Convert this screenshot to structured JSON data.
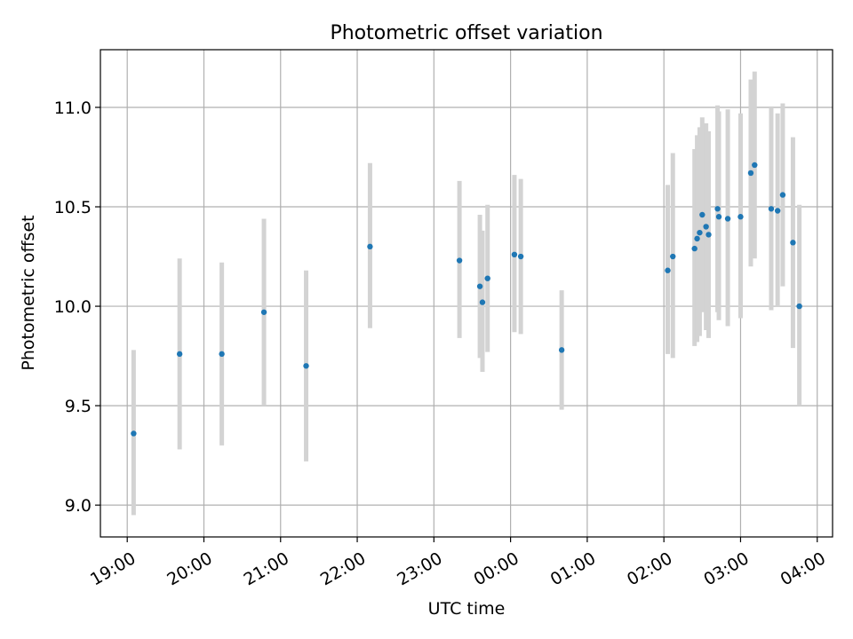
{
  "chart_data": {
    "type": "scatter",
    "title": "Photometric offset variation",
    "xlabel": "UTC time",
    "ylabel": "Photometric offset",
    "x_ticks": [
      "19:00",
      "20:00",
      "21:00",
      "22:00",
      "23:00",
      "00:00",
      "01:00",
      "02:00",
      "03:00",
      "04:00"
    ],
    "x_tick_values": [
      "19:00",
      "20:00",
      "21:00",
      "22:00",
      "23:00",
      "24:00",
      "25:00",
      "26:00",
      "27:00",
      "28:00"
    ],
    "y_ticks": [
      "9.0",
      "9.5",
      "10.0",
      "10.5",
      "11.0"
    ],
    "y_tick_values": [
      9.0,
      9.5,
      10.0,
      10.5,
      11.0
    ],
    "xlim": [
      "18:39",
      "28:12"
    ],
    "ylim": [
      8.84,
      11.29
    ],
    "grid": true,
    "colors": {
      "point": "#1f77b4",
      "errorbar": "#d3d3d3",
      "grid": "#b0b0b0"
    },
    "points": [
      {
        "x": "19:05",
        "y": 9.36,
        "err_low": 8.95,
        "err_high": 9.78
      },
      {
        "x": "19:41",
        "y": 9.76,
        "err_low": 9.28,
        "err_high": 10.24
      },
      {
        "x": "20:14",
        "y": 9.76,
        "err_low": 9.3,
        "err_high": 10.22
      },
      {
        "x": "20:47",
        "y": 9.97,
        "err_low": 9.5,
        "err_high": 10.44
      },
      {
        "x": "21:20",
        "y": 9.7,
        "err_low": 9.22,
        "err_high": 10.18
      },
      {
        "x": "22:10",
        "y": 10.3,
        "err_low": 9.89,
        "err_high": 10.72
      },
      {
        "x": "23:20",
        "y": 10.23,
        "err_low": 9.84,
        "err_high": 10.63
      },
      {
        "x": "23:36",
        "y": 10.1,
        "err_low": 9.74,
        "err_high": 10.46
      },
      {
        "x": "23:38",
        "y": 10.02,
        "err_low": 9.67,
        "err_high": 10.38
      },
      {
        "x": "23:42",
        "y": 10.14,
        "err_low": 9.77,
        "err_high": 10.51
      },
      {
        "x": "24:03",
        "y": 10.26,
        "err_low": 9.87,
        "err_high": 10.66
      },
      {
        "x": "24:08",
        "y": 10.25,
        "err_low": 9.86,
        "err_high": 10.64
      },
      {
        "x": "24:40",
        "y": 9.78,
        "err_low": 9.48,
        "err_high": 10.08
      },
      {
        "x": "26:03",
        "y": 10.18,
        "err_low": 9.76,
        "err_high": 10.61
      },
      {
        "x": "26:07",
        "y": 10.25,
        "err_low": 9.74,
        "err_high": 10.77
      },
      {
        "x": "26:24",
        "y": 10.29,
        "err_low": 9.8,
        "err_high": 10.79
      },
      {
        "x": "26:26",
        "y": 10.34,
        "err_low": 9.82,
        "err_high": 10.86
      },
      {
        "x": "26:28",
        "y": 10.37,
        "err_low": 9.85,
        "err_high": 10.9
      },
      {
        "x": "26:30",
        "y": 10.46,
        "err_low": 9.97,
        "err_high": 10.95
      },
      {
        "x": "26:33",
        "y": 10.4,
        "err_low": 9.88,
        "err_high": 10.92
      },
      {
        "x": "26:35",
        "y": 10.36,
        "err_low": 9.84,
        "err_high": 10.88
      },
      {
        "x": "26:42",
        "y": 10.49,
        "err_low": 9.97,
        "err_high": 11.01
      },
      {
        "x": "26:43",
        "y": 10.45,
        "err_low": 9.93,
        "err_high": 10.98
      },
      {
        "x": "26:50",
        "y": 10.44,
        "err_low": 9.9,
        "err_high": 10.99
      },
      {
        "x": "27:00",
        "y": 10.45,
        "err_low": 9.94,
        "err_high": 10.97
      },
      {
        "x": "27:08",
        "y": 10.67,
        "err_low": 10.2,
        "err_high": 11.14
      },
      {
        "x": "27:11",
        "y": 10.71,
        "err_low": 10.24,
        "err_high": 11.18
      },
      {
        "x": "27:24",
        "y": 10.49,
        "err_low": 9.98,
        "err_high": 11.0
      },
      {
        "x": "27:29",
        "y": 10.48,
        "err_low": 10.0,
        "err_high": 10.97
      },
      {
        "x": "27:33",
        "y": 10.56,
        "err_low": 10.1,
        "err_high": 11.02
      },
      {
        "x": "27:41",
        "y": 10.32,
        "err_low": 9.79,
        "err_high": 10.85
      },
      {
        "x": "27:46",
        "y": 10.0,
        "err_low": 9.5,
        "err_high": 10.51
      }
    ]
  }
}
